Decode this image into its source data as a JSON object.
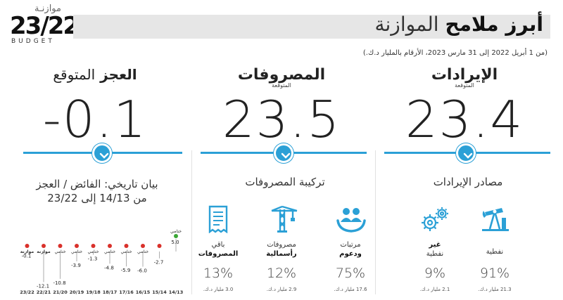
{
  "logo": {
    "arabic": "موازنـة",
    "number": "23/22",
    "word": "BUDGET"
  },
  "header": {
    "title_bold": "أبرز ملامح",
    "title_rest": "الموازنة",
    "subtitle": "(من 1 أبريل 2022 إلى 31 مارس 2023، الأرقام بالمليار د.ك.)"
  },
  "summary": {
    "revenue": {
      "label": "الإيرادات",
      "note": "المتوقعة",
      "value": "23.4"
    },
    "expenses": {
      "label": "المصروفات",
      "note": "المتوقعة",
      "value": "23.5"
    },
    "deficit": {
      "label_bold": "العجز",
      "label_rest": "المتوقع",
      "value": "-0.1"
    }
  },
  "sections": {
    "revenue_sources": "مصادر الإيرادات",
    "expense_composition": "تركيبة المصروفات",
    "history_title_line1": "بيان تاريخي: الفائض / العجز",
    "history_title_line2": "من 14/13 إلى 23/22"
  },
  "revenue_items": [
    {
      "icon": "oil-pump-icon",
      "label_l1": "نفطية",
      "label_l2": "",
      "pct": "91%",
      "amount": "21.3 مليار د.ك."
    },
    {
      "icon": "gears-icon",
      "label_l1": "غير",
      "label_l2": "نفطية",
      "pct": "9%",
      "amount": "2.1 مليار د.ك."
    }
  ],
  "expense_items": [
    {
      "icon": "salaries-support-icon",
      "label_l1": "مرتبات",
      "label_l2": "ودعوم",
      "pct": "75%",
      "amount": "17.6 مليار د.ك."
    },
    {
      "icon": "crane-icon",
      "label_l1": "مصروفات",
      "label_l2": "رأسمالية",
      "pct": "12%",
      "amount": "2.9 مليار د.ك."
    },
    {
      "icon": "receipt-icon",
      "label_l1": "باقي",
      "label_l2": "المصروفات",
      "pct": "13%",
      "amount": "3.0 مليار د.ك."
    }
  ],
  "colors": {
    "accent": "#2ba0d6",
    "surplus": "#3aa635",
    "deficit": "#d9312b"
  },
  "chart_data": {
    "type": "bar",
    "categories": [
      "14/13",
      "15/14",
      "16/15",
      "17/16",
      "18/17",
      "19/18",
      "20/19",
      "21/20",
      "22/21",
      "23/22"
    ],
    "values": [
      5.0,
      -2.7,
      -6.0,
      -5.9,
      -4.8,
      -1.3,
      -3.9,
      -10.8,
      -12.1,
      -0.1
    ],
    "value_labels": [
      "5.0",
      "-2.7",
      "-6.0",
      "-5.9",
      "-4.8",
      "-1.3",
      "-3.9",
      "-10.8",
      "-12.1",
      "-0.1"
    ],
    "point_labels": [
      "ختامي",
      "",
      "ختامي",
      "ختامي",
      "ختامي",
      "ختامي",
      "ختامي",
      "ختامي",
      "موازنة",
      "موازنة"
    ],
    "title": "",
    "xlabel": "",
    "ylabel": "",
    "ylim": [
      -12.1,
      5.0
    ]
  }
}
